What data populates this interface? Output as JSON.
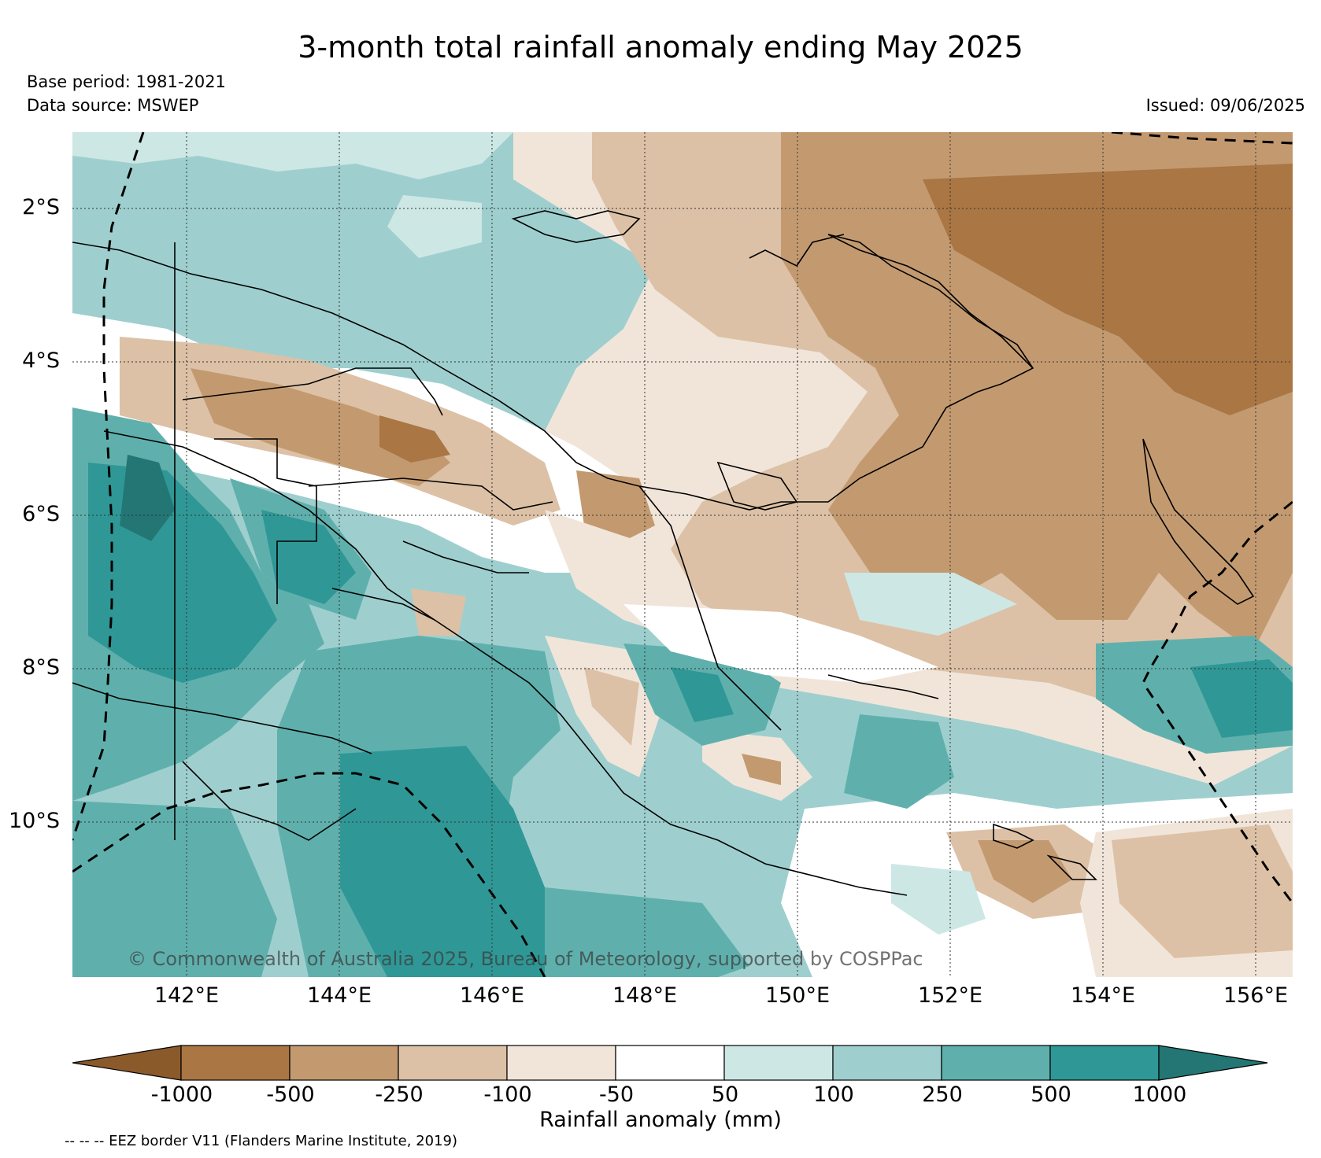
{
  "header": {
    "title": "3-month total rainfall anomaly ending May 2025",
    "base_period": "Base period: 1981-2021",
    "data_source": "Data source: MSWEP",
    "issued": "Issued: 09/06/2025"
  },
  "map": {
    "lat_labels": [
      "2°S",
      "4°S",
      "6°S",
      "8°S",
      "10°S"
    ],
    "lon_labels": [
      "142°E",
      "144°E",
      "146°E",
      "148°E",
      "150°E",
      "152°E",
      "154°E",
      "156°E"
    ],
    "copyright": "© Commonwealth of Australia 2025, Bureau of Meteorology, supported by COSPPac",
    "ocean_color": "#9dcfcc"
  },
  "colorbar": {
    "tick_labels": [
      "-1000",
      "-500",
      "-250",
      "-100",
      "-50",
      "50",
      "100",
      "250",
      "500",
      "1000"
    ],
    "label": "Rainfall anomaly (mm)",
    "colors": [
      "#8b5a2b",
      "#a97644",
      "#c39a70",
      "#dcc1a6",
      "#f1e5da",
      "#ffffff",
      "#cde7e5",
      "#9ecfce",
      "#5fb0ad",
      "#2f9896",
      "#237674"
    ]
  },
  "footer": {
    "eez_note": "-- -- -- EEZ border V11 (Flanders Marine Institute, 2019)"
  }
}
